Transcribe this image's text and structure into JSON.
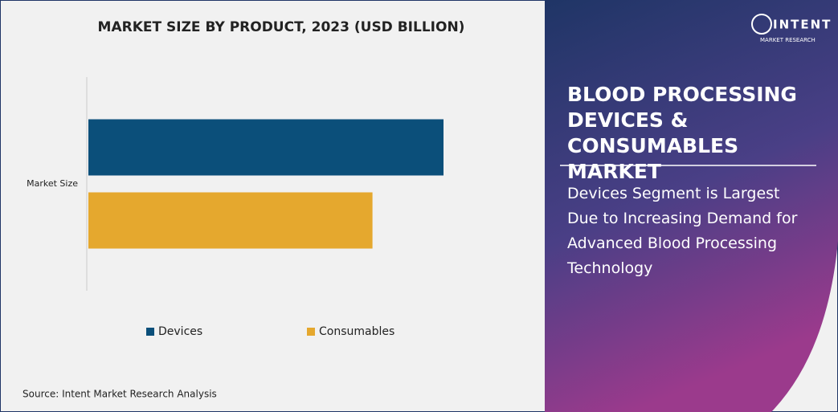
{
  "chart_data": {
    "type": "bar",
    "orientation": "horizontal",
    "title": "MARKET SIZE BY PRODUCT, 2023  (USD BILLION)",
    "categories": [
      "Market Size"
    ],
    "series": [
      {
        "name": "Devices",
        "color": "#0b4f7a",
        "values": [
          5.0
        ]
      },
      {
        "name": "Consumables",
        "color": "#e5a82e",
        "values": [
          4.0
        ]
      }
    ],
    "legend": "bottom"
  },
  "source": "Source: Intent Market Research Analysis",
  "panel": {
    "heading": "BLOOD PROCESSING DEVICES & CONSUMABLES MARKET",
    "subheading": "Devices Segment is Largest Due to Increasing Demand for Advanced Blood Processing Technology"
  },
  "logo": {
    "name": "INTENT",
    "tagline": "MARKET RESEARCH"
  }
}
